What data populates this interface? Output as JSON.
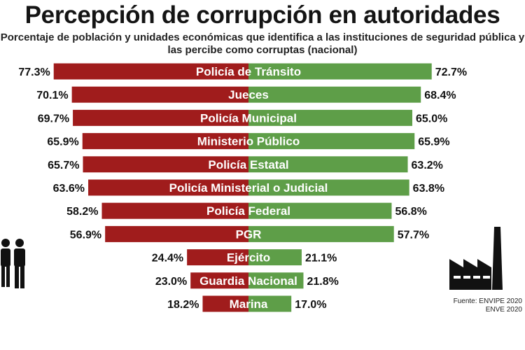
{
  "title": "Percepción de corrupción en autoridades",
  "subtitle": "Porcentaje de población y unidades económicas que identifica a las instituciones de seguridad pública y las percibe como corruptas (nacional)",
  "source": {
    "line1": "Fuente: ENVIPE 2020",
    "line2": "ENVE 2020"
  },
  "icons": {
    "left": "people-icon",
    "right": "factory-icon"
  },
  "colors": {
    "left_bar": "#a01c1c",
    "right_bar": "#5e9e48",
    "bar_label": "#ffffff",
    "value_text": "#111111"
  },
  "chart_data": {
    "type": "bar",
    "orientation": "horizontal-diverging",
    "categories": [
      "Policía de Tránsito",
      "Jueces",
      "Policía Municipal",
      "Ministerio Público",
      "Policía Estatal",
      "Policía Ministerial o Judicial",
      "Policía Federal",
      "PGR",
      "Ejército",
      "Guardia Nacional",
      "Marina"
    ],
    "series": [
      {
        "values": [
          77.3,
          70.1,
          69.7,
          65.9,
          65.7,
          63.6,
          58.2,
          56.9,
          24.4,
          23.0,
          18.2
        ],
        "labels": [
          "77.3%",
          "70.1%",
          "69.7%",
          "65.9%",
          "65.7%",
          "63.6%",
          "58.2%",
          "56.9%",
          "24.4%",
          "23.0%",
          "18.2%"
        ]
      },
      {
        "values": [
          72.7,
          68.4,
          65.0,
          65.9,
          63.2,
          63.8,
          56.8,
          57.7,
          21.1,
          21.8,
          17.0
        ],
        "labels": [
          "72.7%",
          "68.4%",
          "65.0%",
          "65.9%",
          "63.2%",
          "63.8%",
          "56.8%",
          "57.7%",
          "21.1%",
          "21.8%",
          "17.0%"
        ]
      }
    ],
    "unit": "%",
    "xlim": [
      0,
      100
    ],
    "grid": false,
    "legend": "none"
  }
}
